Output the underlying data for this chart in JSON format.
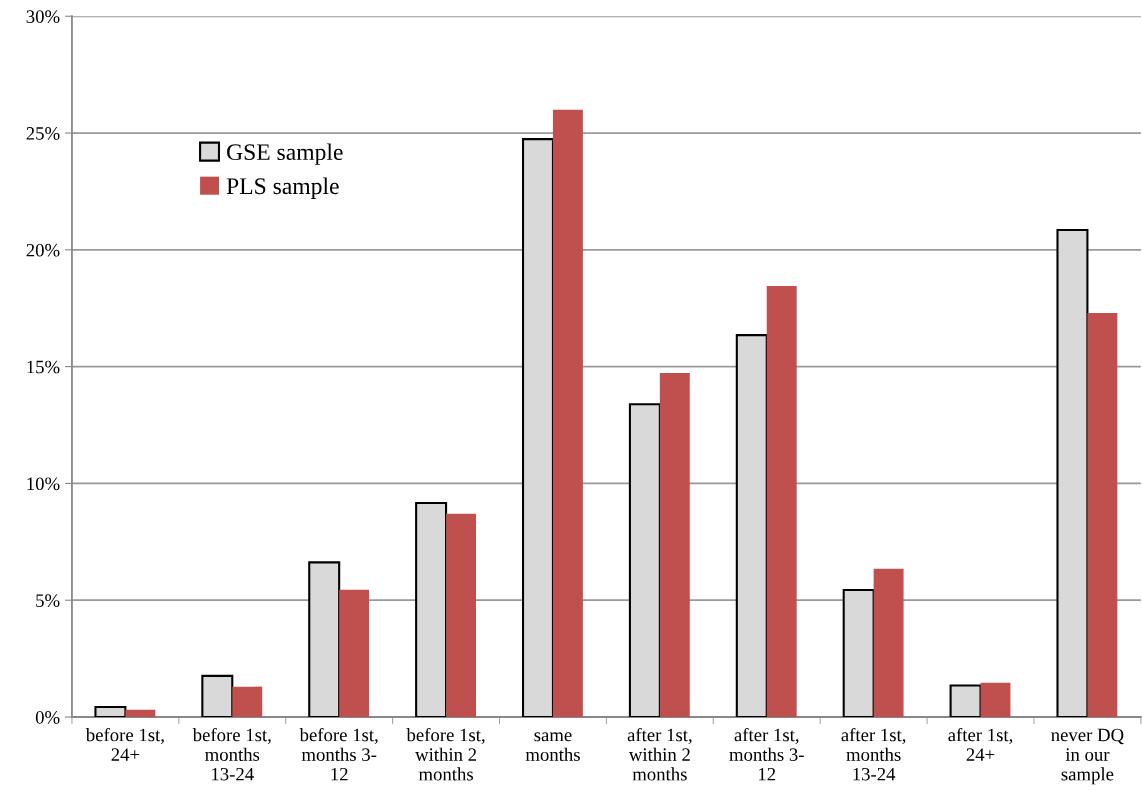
{
  "chart_data": {
    "type": "bar",
    "categories": [
      "before 1st,\n24+",
      "before 1st,\nmonths\n13-24",
      "before 1st,\nmonths 3-\n12",
      "before 1st,\nwithin 2\nmonths",
      "same\nmonths",
      "after 1st,\nwithin 2\nmonths",
      "after 1st,\nmonths 3-\n12",
      "after 1st,\nmonths\n13-24",
      "after 1st,\n24+",
      "never DQ\nin our\nsample"
    ],
    "series": [
      {
        "name": "GSE sample",
        "color": "#d9d9d9",
        "values": [
          0.43,
          1.76,
          6.62,
          9.16,
          24.74,
          13.39,
          16.35,
          5.44,
          1.35,
          20.85
        ]
      },
      {
        "name": "PLS sample",
        "color": "#c0504d",
        "values": [
          0.31,
          1.3,
          5.45,
          8.7,
          26.0,
          14.73,
          18.45,
          6.35,
          1.47,
          17.3
        ]
      }
    ],
    "ylim": [
      0,
      30
    ],
    "yticks": [
      {
        "value": 0,
        "label": "0%"
      },
      {
        "value": 5,
        "label": "5%"
      },
      {
        "value": 10,
        "label": "10%"
      },
      {
        "value": 15,
        "label": "15%"
      },
      {
        "value": 20,
        "label": "20%"
      },
      {
        "value": 25,
        "label": "25%"
      },
      {
        "value": 30,
        "label": "30%"
      }
    ],
    "grid": "y",
    "legend": "top left"
  }
}
